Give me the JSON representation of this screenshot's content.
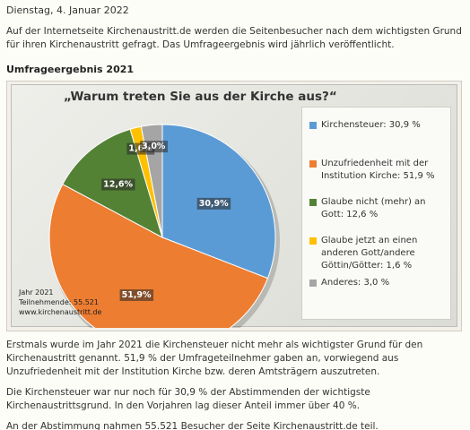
{
  "date": "Dienstag, 4. Januar 2022",
  "intro": "Auf der Internetseite Kirchenaustritt.de werden die Seitenbesucher nach dem wichtigsten Grund für ihren Kirchenaustritt gefragt. Das Umfrageergebnis wird jährlich veröffentlicht.",
  "section_title": "Umfrageergebnis 2021",
  "chart_data": {
    "type": "pie",
    "title": "„Warum treten Sie aus der Kirche aus?“",
    "slices": [
      {
        "legend": "Kirchensteuer: 30,9 %",
        "value": 30.9,
        "label": "30,9%",
        "color": "#5b9bd5"
      },
      {
        "legend": "Unzufriedenheit mit der Institution Kirche: 51,9 %",
        "value": 51.9,
        "label": "51,9%",
        "color": "#ed7d31"
      },
      {
        "legend": "Glaube nicht (mehr) an Gott: 12,6 %",
        "value": 12.6,
        "label": "12,6%",
        "color": "#548235"
      },
      {
        "legend": "Glaube jetzt an einen anderen Gott/andere Göttin/Götter: 1,6 %",
        "value": 1.6,
        "label": "1,6%",
        "color": "#ffc000"
      },
      {
        "legend": "Anderes: 3,0 %",
        "value": 3.0,
        "label": "3,0%",
        "color": "#a5a5a5"
      }
    ],
    "legend_position": "right",
    "note_lines": [
      "Jahr 2021",
      "Teilnehmende: 55.521",
      "www.kirchenaustritt.de"
    ]
  },
  "paragraphs": [
    "Erstmals wurde im Jahr 2021 die Kirchensteuer nicht mehr als wichtigster Grund für den Kirchenaustritt genannt. 51,9 % der Umfrageteilnehmer gaben an, vorwiegend aus Unzufriedenheit mit der Institution Kirche bzw. deren Amtsträgern auszutreten.",
    "Die Kirchensteuer war nur noch für 30,9 % der Abstimmenden der wichtigste Kirchenaustrittsgrund. In den Vorjahren lag dieser Anteil immer über 40 %.",
    "An der Abstimmung nahmen 55.521 Besucher der Seite Kirchenaustritt.de teil."
  ]
}
